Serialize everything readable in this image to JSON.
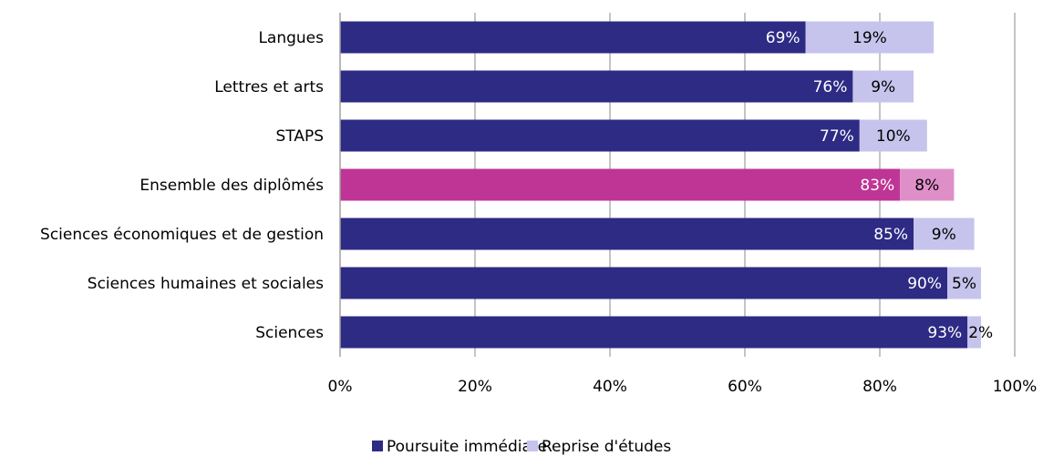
{
  "chart_data": {
    "type": "bar",
    "orientation": "horizontal",
    "stacked": true,
    "categories": [
      "Langues",
      "Lettres et arts",
      "STAPS",
      "Ensemble des diplômés",
      "Sciences économiques et de gestion",
      "Sciences humaines et sociales",
      "Sciences"
    ],
    "series": [
      {
        "name": "Poursuite immédiate",
        "values": [
          69,
          76,
          77,
          83,
          85,
          90,
          93
        ],
        "labels": [
          "69%",
          "76%",
          "77%",
          "83%",
          "85%",
          "90%",
          "93%"
        ],
        "color": "#2e2b85",
        "highlight_color": "#bf3595"
      },
      {
        "name": "Reprise d'études",
        "values": [
          19,
          9,
          10,
          8,
          9,
          5,
          2
        ],
        "labels": [
          "19%",
          "9%",
          "10%",
          "8%",
          "9%",
          "5%",
          "2%"
        ],
        "color": "#c6c4ec",
        "highlight_color": "#df8fc7"
      }
    ],
    "highlight_category": "Ensemble des diplômés",
    "xlim": [
      0,
      100
    ],
    "xticks": [
      "0%",
      "20%",
      "40%",
      "60%",
      "80%",
      "100%"
    ],
    "grid": true,
    "legend_position": "bottom"
  }
}
